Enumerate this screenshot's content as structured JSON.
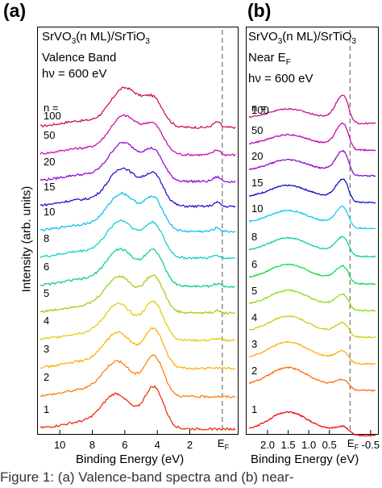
{
  "chart_data": [
    {
      "panel_label": "(a)",
      "type": "line",
      "info_lines": [
        "SrVO3(n ML)/SrTiO3",
        "Valence Band",
        "hν = 600 eV"
      ],
      "ylabel": "Intensity (arb. units)",
      "xlabel": "Binding Energy (eV)",
      "xlim": [
        11.2,
        -0.8
      ],
      "x_ticks": [
        10,
        8,
        6,
        4,
        2
      ],
      "x_tick_labels": [
        "10",
        "8",
        "6",
        "4",
        "2"
      ],
      "fermi_label": "EF",
      "fermi_x": 0,
      "n_header": "n =",
      "series": [
        {
          "name": "100",
          "color": "#cc0050"
        },
        {
          "name": "50",
          "color": "#cc00aa"
        },
        {
          "name": "20",
          "color": "#8800dd"
        },
        {
          "name": "15",
          "color": "#2200cc"
        },
        {
          "name": "10",
          "color": "#00bbee"
        },
        {
          "name": "8",
          "color": "#00cccc"
        },
        {
          "name": "6",
          "color": "#00cc88"
        },
        {
          "name": "5",
          "color": "#99cc00"
        },
        {
          "name": "4",
          "color": "#ddcc00"
        },
        {
          "name": "3",
          "color": "#ffaa00"
        },
        {
          "name": "2",
          "color": "#ff7700"
        },
        {
          "name": "1",
          "color": "#ee2200"
        }
      ]
    },
    {
      "panel_label": "(b)",
      "type": "line",
      "info_lines": [
        "SrVO3(n ML)/SrTiO3",
        "Near EF",
        "hν = 600 eV"
      ],
      "xlabel": "Binding Energy (eV)",
      "xlim": [
        2.45,
        -0.62
      ],
      "x_ticks": [
        2.0,
        1.5,
        1.0,
        0.5,
        -0.5
      ],
      "x_tick_labels": [
        "2.0",
        "1.5",
        "1.0",
        "0.5",
        "-0.5"
      ],
      "fermi_label": "EF",
      "fermi_x": 0,
      "n_header": "n =",
      "series": [
        {
          "name": "100",
          "color": "#cc0088"
        },
        {
          "name": "50",
          "color": "#bb00aa"
        },
        {
          "name": "20",
          "color": "#8800cc"
        },
        {
          "name": "15",
          "color": "#0000cc"
        },
        {
          "name": "10",
          "color": "#00ccee"
        },
        {
          "name": "8",
          "color": "#00ccaa"
        },
        {
          "name": "6",
          "color": "#00dd44"
        },
        {
          "name": "5",
          "color": "#88dd00"
        },
        {
          "name": "4",
          "color": "#cccc00"
        },
        {
          "name": "3",
          "color": "#ffaa00"
        },
        {
          "name": "2",
          "color": "#ff6600"
        },
        {
          "name": "1",
          "color": "#ee0000"
        }
      ]
    }
  ],
  "caption": "Figure 1: (a) Valence-band spectra and (b) near-"
}
